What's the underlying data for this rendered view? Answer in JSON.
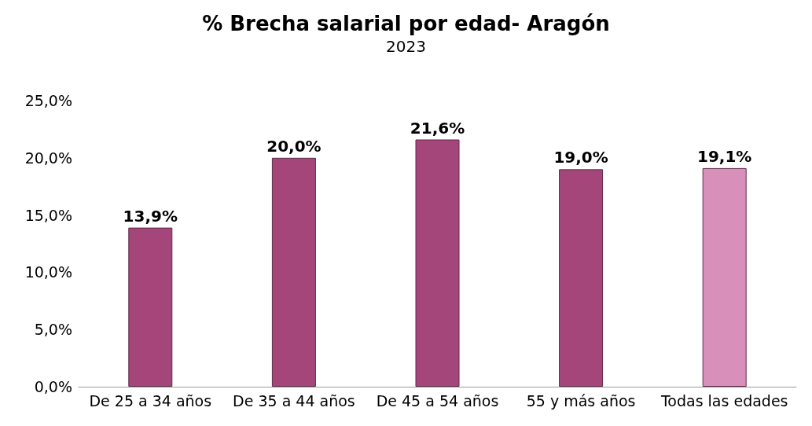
{
  "chart_data": {
    "type": "bar",
    "title": "% Brecha salarial por edad- Aragón",
    "subtitle": "2023",
    "categories": [
      "De 25 a 34 años",
      "De 35 a 44 años",
      "De 45 a 54 años",
      "55 y más años",
      "Todas las edades"
    ],
    "values": [
      13.9,
      20.0,
      21.6,
      19.0,
      19.1
    ],
    "colors": [
      "#a5467a",
      "#a5467a",
      "#a5467a",
      "#a5467a",
      "#d88fb9"
    ],
    "value_labels": [
      "13,9%",
      "20,0%",
      "21,6%",
      "19,0%",
      "19,1%"
    ],
    "ylim": [
      0,
      25
    ],
    "yticks": [
      {
        "value": 0,
        "label": "0,0%"
      },
      {
        "value": 5,
        "label": "5,0%"
      },
      {
        "value": 10,
        "label": "10,0%"
      },
      {
        "value": 15,
        "label": "15,0%"
      },
      {
        "value": 20,
        "label": "20,0%"
      },
      {
        "value": 25,
        "label": "25,0%"
      }
    ],
    "grid": false
  }
}
